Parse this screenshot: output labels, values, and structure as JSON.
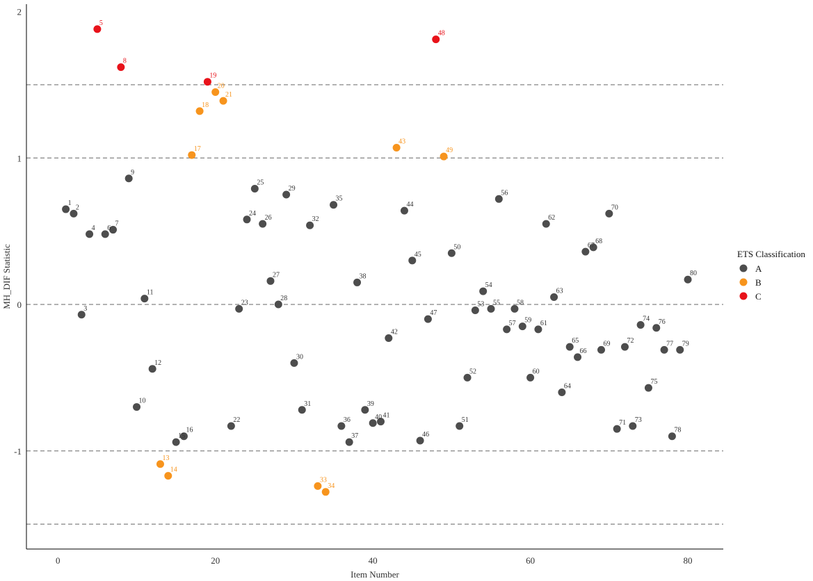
{
  "chart_data": {
    "type": "scatter",
    "title": "",
    "xlabel": "Item Number",
    "ylabel": "MH_DIF Statistic",
    "xlim": [
      -4,
      84.5
    ],
    "ylim": [
      -1.67,
      2.05
    ],
    "x_ticks": [
      0,
      20,
      40,
      60,
      80
    ],
    "y_ticks": [
      -1,
      0,
      1,
      2
    ],
    "y_tick_labels": [
      "-1",
      "0",
      "1",
      "2"
    ],
    "reference_lines": [
      -1.5,
      -1,
      0,
      1,
      1.5
    ],
    "grid": false,
    "legend": {
      "title": "ETS Classification",
      "position": "right",
      "entries": [
        {
          "label": "A",
          "color": "#4d4d4d"
        },
        {
          "label": "B",
          "color": "#f7941d"
        },
        {
          "label": "C",
          "color": "#e8121a"
        }
      ]
    },
    "colors": {
      "A": "#4d4d4d",
      "B": "#f7941d",
      "C": "#e8121a"
    },
    "points": [
      {
        "item": 1,
        "value": 0.65,
        "class": "A"
      },
      {
        "item": 2,
        "value": 0.62,
        "class": "A"
      },
      {
        "item": 3,
        "value": -0.07,
        "class": "A"
      },
      {
        "item": 4,
        "value": 0.48,
        "class": "A"
      },
      {
        "item": 5,
        "value": 1.88,
        "class": "C"
      },
      {
        "item": 6,
        "value": 0.48,
        "class": "A"
      },
      {
        "item": 7,
        "value": 0.51,
        "class": "A"
      },
      {
        "item": 8,
        "value": 1.62,
        "class": "C"
      },
      {
        "item": 9,
        "value": 0.86,
        "class": "A"
      },
      {
        "item": 10,
        "value": -0.7,
        "class": "A"
      },
      {
        "item": 11,
        "value": 0.04,
        "class": "A"
      },
      {
        "item": 12,
        "value": -0.44,
        "class": "A"
      },
      {
        "item": 13,
        "value": -1.09,
        "class": "B"
      },
      {
        "item": 14,
        "value": -1.17,
        "class": "B"
      },
      {
        "item": 15,
        "value": -0.94,
        "class": "A"
      },
      {
        "item": 16,
        "value": -0.9,
        "class": "A"
      },
      {
        "item": 17,
        "value": 1.02,
        "class": "B"
      },
      {
        "item": 18,
        "value": 1.32,
        "class": "B"
      },
      {
        "item": 19,
        "value": 1.52,
        "class": "C"
      },
      {
        "item": 20,
        "value": 1.45,
        "class": "B"
      },
      {
        "item": 21,
        "value": 1.39,
        "class": "B"
      },
      {
        "item": 22,
        "value": -0.83,
        "class": "A"
      },
      {
        "item": 23,
        "value": -0.03,
        "class": "A"
      },
      {
        "item": 24,
        "value": 0.58,
        "class": "A"
      },
      {
        "item": 25,
        "value": 0.79,
        "class": "A"
      },
      {
        "item": 26,
        "value": 0.55,
        "class": "A"
      },
      {
        "item": 27,
        "value": 0.16,
        "class": "A"
      },
      {
        "item": 28,
        "value": 0.0,
        "class": "A"
      },
      {
        "item": 29,
        "value": 0.75,
        "class": "A"
      },
      {
        "item": 30,
        "value": -0.4,
        "class": "A"
      },
      {
        "item": 31,
        "value": -0.72,
        "class": "A"
      },
      {
        "item": 32,
        "value": 0.54,
        "class": "A"
      },
      {
        "item": 33,
        "value": -1.24,
        "class": "B"
      },
      {
        "item": 34,
        "value": -1.28,
        "class": "B"
      },
      {
        "item": 35,
        "value": 0.68,
        "class": "A"
      },
      {
        "item": 36,
        "value": -0.83,
        "class": "A"
      },
      {
        "item": 37,
        "value": -0.94,
        "class": "A"
      },
      {
        "item": 38,
        "value": 0.15,
        "class": "A"
      },
      {
        "item": 39,
        "value": -0.72,
        "class": "A"
      },
      {
        "item": 40,
        "value": -0.81,
        "class": "A"
      },
      {
        "item": 41,
        "value": -0.8,
        "class": "A"
      },
      {
        "item": 42,
        "value": -0.23,
        "class": "A"
      },
      {
        "item": 43,
        "value": 1.07,
        "class": "B"
      },
      {
        "item": 44,
        "value": 0.64,
        "class": "A"
      },
      {
        "item": 45,
        "value": 0.3,
        "class": "A"
      },
      {
        "item": 46,
        "value": -0.93,
        "class": "A"
      },
      {
        "item": 47,
        "value": -0.1,
        "class": "A"
      },
      {
        "item": 48,
        "value": 1.81,
        "class": "C"
      },
      {
        "item": 49,
        "value": 1.01,
        "class": "B"
      },
      {
        "item": 50,
        "value": 0.35,
        "class": "A"
      },
      {
        "item": 51,
        "value": -0.83,
        "class": "A"
      },
      {
        "item": 52,
        "value": -0.5,
        "class": "A"
      },
      {
        "item": 53,
        "value": -0.04,
        "class": "A"
      },
      {
        "item": 54,
        "value": 0.09,
        "class": "A"
      },
      {
        "item": 55,
        "value": -0.03,
        "class": "A"
      },
      {
        "item": 56,
        "value": 0.72,
        "class": "A"
      },
      {
        "item": 57,
        "value": -0.17,
        "class": "A"
      },
      {
        "item": 58,
        "value": -0.03,
        "class": "A"
      },
      {
        "item": 59,
        "value": -0.15,
        "class": "A"
      },
      {
        "item": 60,
        "value": -0.5,
        "class": "A"
      },
      {
        "item": 61,
        "value": -0.17,
        "class": "A"
      },
      {
        "item": 62,
        "value": 0.55,
        "class": "A"
      },
      {
        "item": 63,
        "value": 0.05,
        "class": "A"
      },
      {
        "item": 64,
        "value": -0.6,
        "class": "A"
      },
      {
        "item": 65,
        "value": -0.29,
        "class": "A"
      },
      {
        "item": 66,
        "value": -0.36,
        "class": "A"
      },
      {
        "item": 67,
        "value": 0.36,
        "class": "A"
      },
      {
        "item": 68,
        "value": 0.39,
        "class": "A"
      },
      {
        "item": 69,
        "value": -0.31,
        "class": "A"
      },
      {
        "item": 70,
        "value": 0.62,
        "class": "A"
      },
      {
        "item": 71,
        "value": -0.85,
        "class": "A"
      },
      {
        "item": 72,
        "value": -0.29,
        "class": "A"
      },
      {
        "item": 73,
        "value": -0.83,
        "class": "A"
      },
      {
        "item": 74,
        "value": -0.14,
        "class": "A"
      },
      {
        "item": 75,
        "value": -0.57,
        "class": "A"
      },
      {
        "item": 76,
        "value": -0.16,
        "class": "A"
      },
      {
        "item": 77,
        "value": -0.31,
        "class": "A"
      },
      {
        "item": 78,
        "value": -0.9,
        "class": "A"
      },
      {
        "item": 79,
        "value": -0.31,
        "class": "A"
      },
      {
        "item": 80,
        "value": 0.17,
        "class": "A"
      }
    ]
  }
}
